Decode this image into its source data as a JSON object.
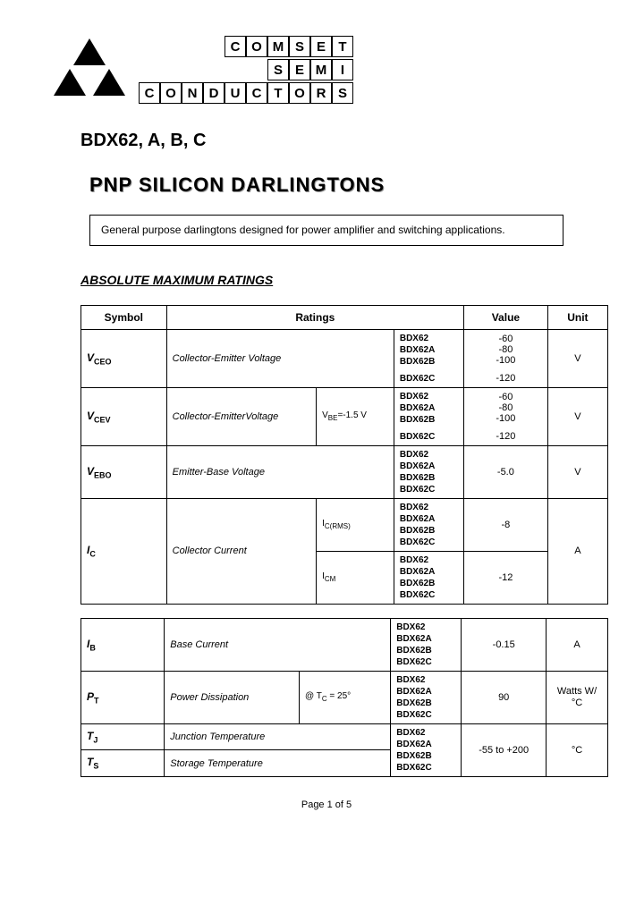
{
  "company": {
    "line1": "COMSET",
    "line2": "SEMI",
    "line3": "CONDUCTORS"
  },
  "part_number": "BDX62, A, B, C",
  "title": "PNP SILICON DARLINGTONS",
  "description": "General purpose darlingtons designed for power amplifier and switching applications.",
  "section": "ABSOLUTE MAXIMUM RATINGS",
  "headers": {
    "symbol": "Symbol",
    "ratings": "Ratings",
    "value": "Value",
    "unit": "Unit"
  },
  "parts_list": [
    "BDX62",
    "BDX62A",
    "BDX62B",
    "BDX62C"
  ],
  "rows": {
    "vceo": {
      "sym": "V",
      "sub": "CEO",
      "rating": "Collector-Emitter Voltage",
      "cond": "",
      "values": [
        "-60",
        "-80",
        "-100",
        "-120"
      ],
      "unit": "V"
    },
    "vcev": {
      "sym": "V",
      "sub": "CEV",
      "rating": "Collector-EmitterVoltage",
      "cond_pre": "V",
      "cond_sub": "BE",
      "cond_post": "=-1.5 V",
      "values": [
        "-60",
        "-80",
        "-100",
        "-120"
      ],
      "unit": "V"
    },
    "vebo": {
      "sym": "V",
      "sub": "EBO",
      "rating": "Emitter-Base Voltage",
      "cond": "",
      "value": "-5.0",
      "unit": "V"
    },
    "ic": {
      "sym": "I",
      "sub": "C",
      "rating": "Collector Current",
      "cond1_pre": "I",
      "cond1_sub": "C(RMS)",
      "cond2_pre": "I",
      "cond2_sub": "CM",
      "value1": "-8",
      "value2": "-12",
      "unit": "A"
    },
    "ib": {
      "sym": "I",
      "sub": "B",
      "rating": "Base Current",
      "cond": "",
      "value": "-0.15",
      "unit": "A"
    },
    "pt": {
      "sym": "P",
      "sub": "T",
      "rating": "Power Dissipation",
      "cond_pre": "@ T",
      "cond_sub": "C",
      "cond_post": " = 25°",
      "value": "90",
      "unit": "Watts W/°C"
    },
    "tj": {
      "sym": "T",
      "sub": "J",
      "rating": "Junction Temperature"
    },
    "ts": {
      "sym": "T",
      "sub": "S",
      "rating": "Storage Temperature",
      "value": "-55 to +200",
      "unit": "°C"
    }
  },
  "footer": "Page 1 of 5"
}
